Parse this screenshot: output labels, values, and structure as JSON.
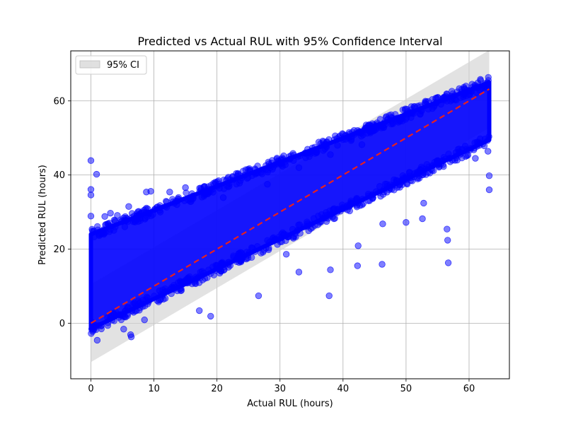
{
  "chart_data": {
    "type": "scatter",
    "title": "Predicted vs Actual RUL with 95% Confidence Interval",
    "xlabel": "Actual RUL (hours)",
    "ylabel": "Predicted RUL (hours)",
    "xlim": [
      -3.2,
      66.4
    ],
    "ylim": [
      -15,
      73.5
    ],
    "xticks": [
      0,
      10,
      20,
      30,
      40,
      50,
      60
    ],
    "yticks": [
      0,
      20,
      40,
      60
    ],
    "grid": true,
    "legend": {
      "placement": "top-left",
      "entries": [
        "95% CI"
      ]
    },
    "colors": {
      "points": "#0000ff",
      "ideal_line": "#e8201e",
      "ci_band": "#d3d3d3"
    },
    "ideal_line": {
      "x": [
        0,
        63.2
      ],
      "y": [
        0,
        63.2
      ],
      "style": "dashed"
    },
    "ci_band": {
      "x": [
        0,
        63.2
      ],
      "lower": [
        -10.5,
        52.7
      ],
      "upper": [
        10.5,
        73.7
      ],
      "label": "95% CI"
    },
    "scatter": {
      "dense_cloud": {
        "x": [
          0,
          63.2
        ],
        "lower_bound": [
          -1.5,
          49.5
        ],
        "upper_bound": [
          24,
          65
        ]
      },
      "outliers": [
        [
          0,
          43.9
        ],
        [
          0,
          36.1
        ],
        [
          0,
          34.6
        ],
        [
          0,
          28.9
        ],
        [
          0.2,
          -1
        ],
        [
          0.9,
          40.2
        ],
        [
          1,
          -4.6
        ],
        [
          2.2,
          28.8
        ],
        [
          3.1,
          29.7
        ],
        [
          4.2,
          29.1
        ],
        [
          5.2,
          -1.6
        ],
        [
          6.4,
          -3.7
        ],
        [
          6.3,
          -3.1
        ],
        [
          8.5,
          0.9
        ],
        [
          8.8,
          35.4
        ],
        [
          9.5,
          35.6
        ],
        [
          12.5,
          35.4
        ],
        [
          17.2,
          3.4
        ],
        [
          19,
          1.9
        ],
        [
          15,
          36.6
        ],
        [
          18,
          36.8
        ],
        [
          26.6,
          7.4
        ],
        [
          31,
          18.6
        ],
        [
          33,
          13.8
        ],
        [
          37.8,
          7.4
        ],
        [
          38,
          14.4
        ],
        [
          42.3,
          15.5
        ],
        [
          42.4,
          20.9
        ],
        [
          46.3,
          26.8
        ],
        [
          46.2,
          15.9
        ],
        [
          50,
          27.2
        ],
        [
          52.6,
          28.2
        ],
        [
          52.8,
          32.4
        ],
        [
          56.5,
          25.4
        ],
        [
          56.6,
          22.4
        ],
        [
          56.7,
          16.3
        ],
        [
          61,
          44.5
        ],
        [
          63.2,
          39.8
        ],
        [
          63.2,
          36
        ],
        [
          63,
          46.4
        ],
        [
          59.5,
          64
        ],
        [
          61.8,
          65.8
        ],
        [
          48.5,
          55.3
        ],
        [
          53,
          59.5
        ],
        [
          56,
          61
        ],
        [
          38,
          45.5
        ],
        [
          43,
          48.2
        ],
        [
          33,
          42
        ],
        [
          28,
          37.5
        ],
        [
          21,
          33.9
        ],
        [
          11,
          30
        ],
        [
          6,
          31.5
        ]
      ]
    }
  }
}
